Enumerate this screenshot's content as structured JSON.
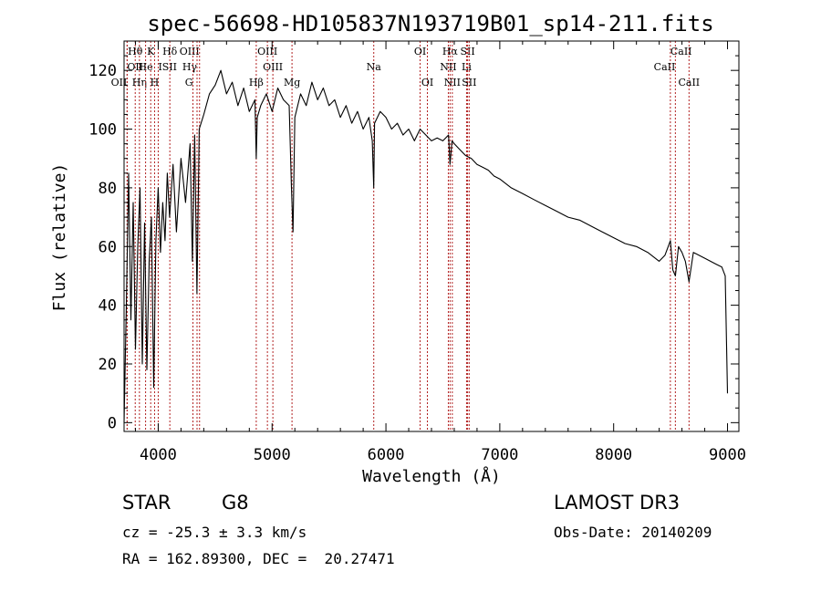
{
  "chart_data": {
    "type": "line",
    "title": "spec-56698-HD105837N193719B01_sp14-211.fits",
    "xlabel": "Wavelength (Å)",
    "ylabel": "Flux (relative)",
    "xlim": [
      3700,
      9100
    ],
    "ylim": [
      -3,
      130
    ],
    "xticks": [
      4000,
      5000,
      6000,
      7000,
      8000,
      9000
    ],
    "yticks": [
      0,
      20,
      40,
      60,
      80,
      100,
      120
    ],
    "grid": false,
    "legend": "none",
    "colors": {
      "spectrum": "#000000",
      "line_markers": "#b22222"
    },
    "series": [
      {
        "values_x": [
          3700,
          3720,
          3740,
          3760,
          3780,
          3800,
          3820,
          3840,
          3860,
          3880,
          3900,
          3920,
          3940,
          3960,
          3980,
          4000,
          4020,
          4040,
          4060,
          4080,
          4100,
          4130,
          4160,
          4200,
          4240,
          4280,
          4300,
          4320,
          4340,
          4360,
          4400,
          4450,
          4500,
          4550,
          4600,
          4650,
          4700,
          4750,
          4800,
          4850,
          4861,
          4870,
          4900,
          4950,
          5000,
          5050,
          5100,
          5150,
          5170,
          5184,
          5200,
          5250,
          5300,
          5350,
          5400,
          5450,
          5500,
          5550,
          5600,
          5650,
          5700,
          5750,
          5800,
          5850,
          5880,
          5893,
          5900,
          5950,
          6000,
          6050,
          6100,
          6150,
          6200,
          6250,
          6300,
          6350,
          6400,
          6450,
          6500,
          6550,
          6563,
          6580,
          6600,
          6650,
          6700,
          6750,
          6800,
          6850,
          6900,
          6950,
          7000,
          7100,
          7200,
          7300,
          7400,
          7500,
          7600,
          7700,
          7800,
          7900,
          8000,
          8100,
          8200,
          8300,
          8400,
          8450,
          8498,
          8520,
          8542,
          8570,
          8600,
          8630,
          8662,
          8700,
          8750,
          8800,
          8850,
          8900,
          8950,
          8980,
          9000
        ],
        "values_y": [
          0,
          40,
          85,
          35,
          75,
          25,
          60,
          80,
          20,
          68,
          18,
          55,
          70,
          12,
          62,
          80,
          58,
          75,
          62,
          85,
          70,
          88,
          65,
          90,
          75,
          95,
          55,
          98,
          44,
          100,
          105,
          112,
          115,
          120,
          112,
          116,
          108,
          114,
          106,
          110,
          90,
          104,
          108,
          112,
          106,
          114,
          110,
          108,
          80,
          65,
          104,
          112,
          108,
          116,
          110,
          114,
          108,
          110,
          104,
          108,
          102,
          106,
          100,
          104,
          96,
          80,
          102,
          106,
          104,
          100,
          102,
          98,
          100,
          96,
          100,
          98,
          96,
          97,
          96,
          98,
          88,
          96,
          95,
          93,
          91,
          90,
          88,
          87,
          86,
          84,
          83,
          80,
          78,
          76,
          74,
          72,
          70,
          69,
          67,
          65,
          63,
          61,
          60,
          58,
          55,
          57,
          62,
          52,
          50,
          60,
          58,
          55,
          48,
          58,
          57,
          56,
          55,
          54,
          53,
          50,
          10
        ]
      }
    ],
    "line_markers": [
      {
        "label": "Hθ",
        "x": 3798,
        "row": 0,
        "anchor": "middle"
      },
      {
        "label": "OII",
        "x": 3727,
        "row": 1,
        "anchor": "start"
      },
      {
        "label": "OII",
        "x": 3727,
        "row": 2,
        "anchor": "end"
      },
      {
        "label": "Hη",
        "x": 3835,
        "row": 2,
        "anchor": "middle"
      },
      {
        "label": "He",
        "x": 3889,
        "row": 1,
        "anchor": "middle"
      },
      {
        "label": "K",
        "x": 3934,
        "row": 0,
        "anchor": "middle"
      },
      {
        "label": "H",
        "x": 3968,
        "row": 2,
        "anchor": "middle"
      },
      {
        "label": "ISII",
        "x": 4000,
        "row": 1,
        "anchor": "start"
      },
      {
        "label": "Hδ",
        "x": 4102,
        "row": 0,
        "anchor": "middle"
      },
      {
        "label": "OIII",
        "x": 4363,
        "row": 0,
        "anchor": "end"
      },
      {
        "label": "Hγ",
        "x": 4341,
        "row": 1,
        "anchor": "end"
      },
      {
        "label": "G",
        "x": 4305,
        "row": 2,
        "anchor": "end"
      },
      {
        "label": "Hβ",
        "x": 4861,
        "row": 2,
        "anchor": "middle"
      },
      {
        "label": "OIII",
        "x": 4959,
        "row": 0,
        "anchor": "middle"
      },
      {
        "label": "OIII",
        "x": 5007,
        "row": 1,
        "anchor": "middle"
      },
      {
        "label": "Mg",
        "x": 5175,
        "row": 2,
        "anchor": "middle"
      },
      {
        "label": "Na",
        "x": 5893,
        "row": 1,
        "anchor": "middle"
      },
      {
        "label": "OI",
        "x": 6300,
        "row": 0,
        "anchor": "middle"
      },
      {
        "label": "OI",
        "x": 6364,
        "row": 2,
        "anchor": "middle"
      },
      {
        "label": "Hα",
        "x": 6563,
        "row": 0,
        "anchor": "middle"
      },
      {
        "label": "NII",
        "x": 6548,
        "row": 1,
        "anchor": "middle"
      },
      {
        "label": "NII",
        "x": 6583,
        "row": 2,
        "anchor": "middle"
      },
      {
        "label": "SII",
        "x": 6717,
        "row": 0,
        "anchor": "middle"
      },
      {
        "label": "Li",
        "x": 6708,
        "row": 1,
        "anchor": "middle"
      },
      {
        "label": "SII",
        "x": 6731,
        "row": 2,
        "anchor": "middle"
      },
      {
        "label": "CaII",
        "x": 8498,
        "row": 0,
        "anchor": "start"
      },
      {
        "label": "CaII",
        "x": 8542,
        "row": 1,
        "anchor": "end"
      },
      {
        "label": "CaII",
        "x": 8662,
        "row": 2,
        "anchor": "middle"
      }
    ]
  },
  "info": {
    "object_class": "STAR",
    "subclass": "G8",
    "survey": "LAMOST DR3",
    "redshift": "cz = -25.3 ± 3.3 km/s",
    "obs_date": "Obs-Date: 20140209",
    "coords": "RA = 162.89300, DEC =  20.27471"
  }
}
